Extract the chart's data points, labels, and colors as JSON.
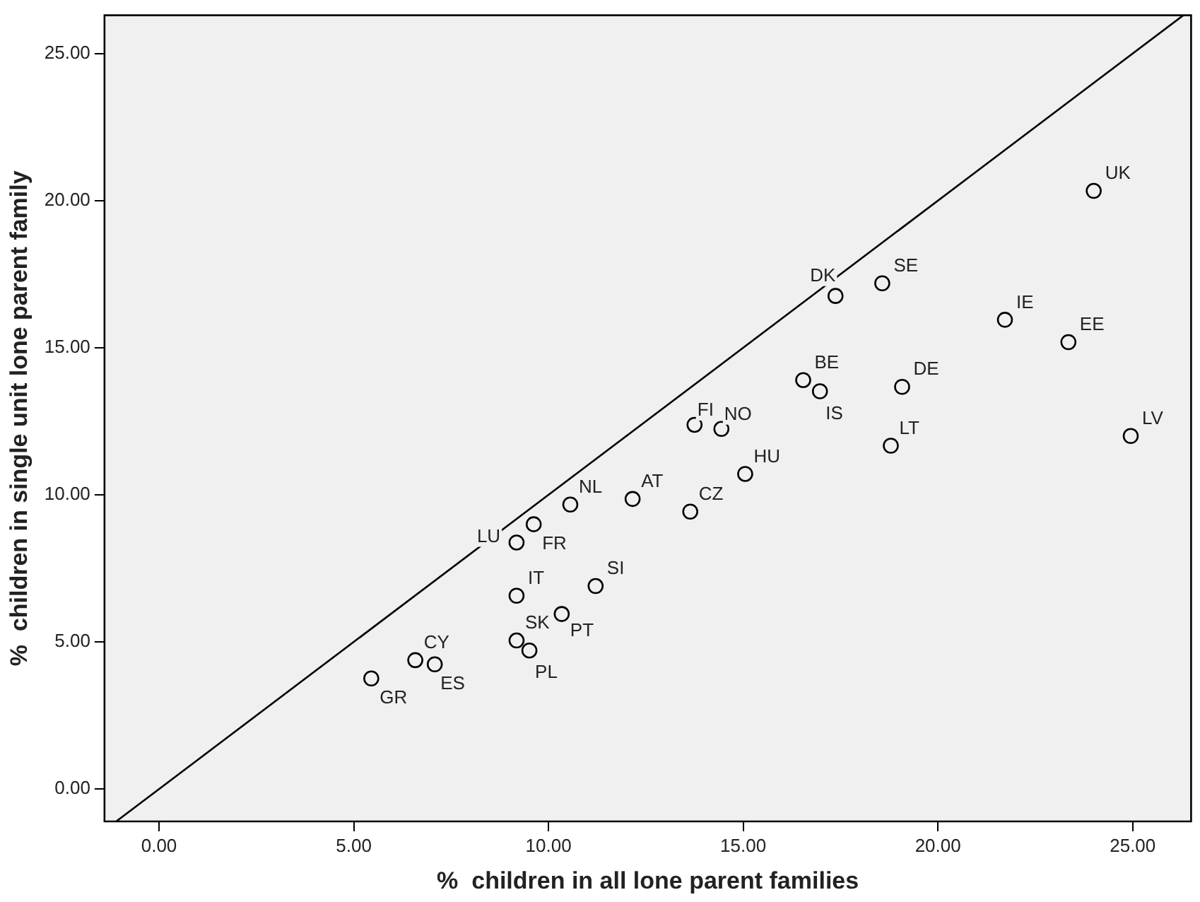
{
  "chart_data": {
    "type": "scatter",
    "xlabel": "%  children in all lone parent families",
    "ylabel": "%  children in single unit lone parent family",
    "xlim": [
      -1.4,
      26.5
    ],
    "ylim": [
      -1.1,
      26.3
    ],
    "xticks": [
      {
        "value": 0,
        "label": "0.00"
      },
      {
        "value": 5,
        "label": "5.00"
      },
      {
        "value": 10,
        "label": "10.00"
      },
      {
        "value": 15,
        "label": "15.00"
      },
      {
        "value": 20,
        "label": "20.00"
      },
      {
        "value": 25,
        "label": "25.00"
      }
    ],
    "yticks": [
      {
        "value": 0,
        "label": "0.00"
      },
      {
        "value": 5,
        "label": "5.00"
      },
      {
        "value": 10,
        "label": "10.00"
      },
      {
        "value": 15,
        "label": "15.00"
      },
      {
        "value": 20,
        "label": "20.00"
      },
      {
        "value": 25,
        "label": "25.00"
      }
    ],
    "grid": false,
    "legend": false,
    "series": [
      {
        "type": "scatter",
        "marker": "circle",
        "color": "#000000",
        "x": [
          24.0,
          18.57,
          17.37,
          21.72,
          23.35,
          16.54,
          16.97,
          19.08,
          13.75,
          14.44,
          18.79,
          24.95,
          15.05,
          12.16,
          13.64,
          10.56,
          9.62,
          9.18,
          11.21,
          9.18,
          10.34,
          9.18,
          9.51,
          6.58,
          7.08,
          5.45
        ],
        "values": [
          20.33,
          17.19,
          16.76,
          15.95,
          15.19,
          13.9,
          13.52,
          13.67,
          12.38,
          12.24,
          11.67,
          12.0,
          10.71,
          9.86,
          9.43,
          9.67,
          9.0,
          8.38,
          6.9,
          6.57,
          5.95,
          5.05,
          4.71,
          4.38,
          4.24,
          3.76
        ],
        "value_labels": [
          "UK",
          "SE",
          "DK",
          "IE",
          "EE",
          "BE",
          "IS",
          "DE",
          "FI",
          "NO",
          "LT",
          "LV",
          "HU",
          "AT",
          "CZ",
          "NL",
          "FR",
          "LU",
          "SI",
          "IT",
          "PT",
          "SK",
          "PL",
          "CY",
          "ES",
          "GR"
        ]
      },
      {
        "type": "line",
        "marker": "none",
        "color": "#000000",
        "x": [
          -1.1,
          26.3
        ],
        "values": [
          -1.1,
          26.3
        ]
      }
    ]
  }
}
